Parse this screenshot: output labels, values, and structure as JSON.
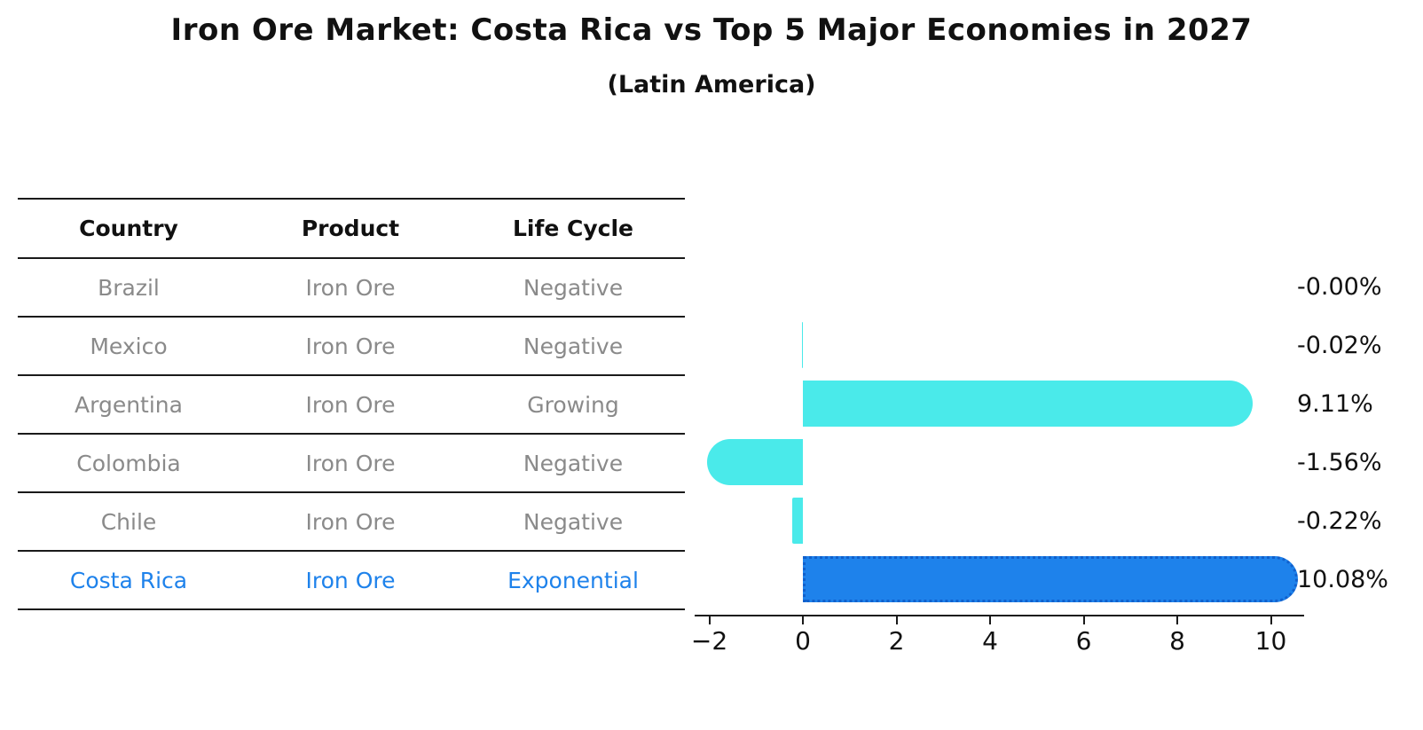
{
  "title": "Iron Ore Market: Costa Rica vs Top 5 Major Economies in 2027",
  "subtitle": "(Latin America)",
  "table": {
    "headers": [
      "Country",
      "Product",
      "Life Cycle"
    ],
    "rows": [
      {
        "country": "Brazil",
        "product": "Iron Ore",
        "life_cycle": "Negative",
        "highlight": false
      },
      {
        "country": "Mexico",
        "product": "Iron Ore",
        "life_cycle": "Negative",
        "highlight": false
      },
      {
        "country": "Argentina",
        "product": "Iron Ore",
        "life_cycle": "Growing",
        "highlight": false
      },
      {
        "country": "Colombia",
        "product": "Iron Ore",
        "life_cycle": "Negative",
        "highlight": false
      },
      {
        "country": "Chile",
        "product": "Iron Ore",
        "life_cycle": "Negative",
        "highlight": false
      },
      {
        "country": "Costa Rica",
        "product": "Iron Ore",
        "life_cycle": "Exponential",
        "highlight": true
      }
    ]
  },
  "chart_data": {
    "type": "bar",
    "orientation": "horizontal",
    "categories": [
      "Brazil",
      "Mexico",
      "Argentina",
      "Colombia",
      "Chile",
      "Costa Rica"
    ],
    "values": [
      -0.0,
      -0.02,
      9.11,
      -1.56,
      -0.22,
      10.08
    ],
    "value_labels": [
      "-0.00%",
      "-0.02%",
      "9.11%",
      "-1.56%",
      "-0.22%",
      "10.08%"
    ],
    "x_ticks": [
      -2,
      0,
      2,
      4,
      6,
      8,
      10
    ],
    "xlim": [
      -2.4,
      10.8
    ],
    "grid": false,
    "legend_position": "none",
    "highlight_index": 5,
    "bar_color": "#4AEAEA",
    "highlight_bar_color": "#1E82EB"
  },
  "colors": {
    "header_text": "#111111",
    "row_text": "#8a8a8a",
    "highlight_text": "#1E82EB",
    "highlight_border": "#1160CC",
    "axis": "#1a1a1a",
    "value_label": "#111111"
  }
}
